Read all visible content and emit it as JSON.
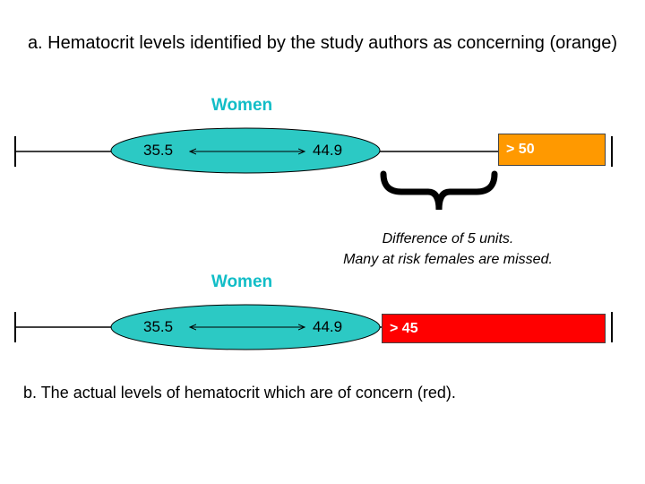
{
  "heading_a": "a. Hematocrit levels identified by the study authors as concerning (orange)",
  "top_scale": {
    "group_label": "Women",
    "low_value": "35.5",
    "high_value": "44.9",
    "threshold_label": "> 50",
    "threshold_color": "#ff9900"
  },
  "difference_note": {
    "line1": "Difference of 5 units.",
    "line2": "Many at risk females are missed."
  },
  "bottom_scale": {
    "group_label": "Women",
    "low_value": "35.5",
    "high_value": "44.9",
    "threshold_label": "> 45",
    "threshold_color": "#ff0000"
  },
  "caption_b": "b. The actual levels of hematocrit which are of concern (red).",
  "colors": {
    "oval_fill": "#2cc9c4",
    "label_color": "#11bdc7"
  }
}
